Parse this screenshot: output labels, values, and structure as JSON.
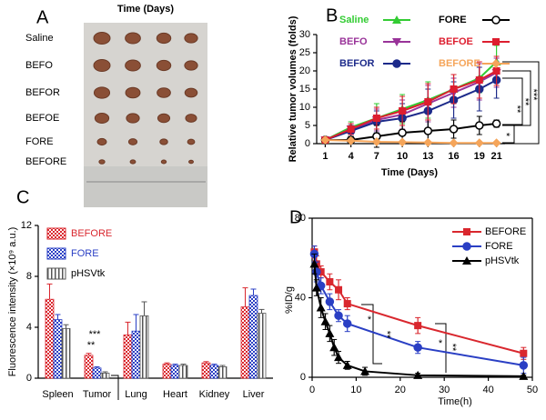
{
  "photo_panel": {
    "label": "A",
    "title": "Time (Days)",
    "rows": [
      "Saline",
      "BEFO",
      "BEFOR",
      "BEFOE",
      "FORE",
      "BEFORE"
    ]
  },
  "chart_data": [
    {
      "type": "line",
      "panel_label": "B",
      "x_label": "Time (Days)",
      "y_label": "Relative tumor volumes (folds)",
      "x": [
        1,
        4,
        7,
        10,
        13,
        16,
        19,
        21
      ],
      "xlim": [
        0,
        22
      ],
      "xticks": [
        1,
        4,
        7,
        10,
        13,
        16,
        19,
        21
      ],
      "ylim": [
        0,
        30
      ],
      "yticks": [
        0,
        5,
        10,
        15,
        20,
        25,
        30
      ],
      "series": [
        {
          "name": "Saline",
          "color": "#33cc33",
          "marker": "triangle-up",
          "values": [
            1,
            4.5,
            7,
            9.5,
            12,
            15,
            18,
            22.5
          ],
          "errors": [
            0.2,
            1.5,
            4,
            4,
            5,
            4,
            4,
            4.5
          ]
        },
        {
          "name": "BEFO",
          "color": "#993399",
          "marker": "triangle-down",
          "values": [
            1,
            4,
            6.5,
            8,
            11,
            14,
            17,
            19.5
          ],
          "errors": [
            0.2,
            1.5,
            3,
            4,
            5,
            4,
            5,
            4
          ]
        },
        {
          "name": "BEFOR",
          "color": "#1c2a8a",
          "marker": "circle",
          "values": [
            1,
            3.5,
            6,
            7,
            9,
            12,
            15,
            17.5
          ],
          "errors": [
            0.2,
            1.5,
            3,
            4,
            6,
            5,
            6,
            5
          ]
        },
        {
          "name": "FORE",
          "color": "#000000",
          "marker": "circle-open",
          "values": [
            1,
            1,
            2,
            3,
            3.5,
            4,
            5,
            5.5
          ],
          "errors": [
            0.2,
            1,
            3,
            3,
            3,
            2.5,
            2.5,
            1
          ]
        },
        {
          "name": "BEFOE",
          "color": "#dd1e2f",
          "marker": "square",
          "values": [
            1,
            4,
            7,
            9,
            11.5,
            15,
            17.5,
            20
          ],
          "errors": [
            0.2,
            1.5,
            3,
            4,
            5,
            4,
            5,
            4
          ]
        },
        {
          "name": "BEFORE",
          "color": "#f5a55a",
          "marker": "diamond",
          "values": [
            1,
            0.8,
            0.5,
            0.4,
            0.3,
            0.2,
            0.2,
            0.2
          ],
          "errors": [
            0.1,
            0.2,
            0.2,
            0.1,
            0.1,
            0.1,
            0.1,
            0.1
          ]
        }
      ],
      "annotations": [
        "*",
        "**",
        "**",
        "***"
      ]
    },
    {
      "type": "bar",
      "panel_label": "C",
      "y_label": "Fluorescence intensity (×10⁹ a.u.)",
      "categories": [
        "Spleen",
        "Tumor",
        "Lung",
        "Heart",
        "Kidney",
        "Liver"
      ],
      "ylim": [
        0,
        12
      ],
      "yticks": [
        0,
        4,
        8,
        12
      ],
      "series": [
        {
          "name": "BEFORE",
          "color": "#d9272e",
          "pattern": "check",
          "values": [
            6.2,
            1.8,
            3.4,
            1.1,
            1.2,
            5.6
          ],
          "errors": [
            1.2,
            0.15,
            1.0,
            0.1,
            0.1,
            1.5
          ]
        },
        {
          "name": "FORE",
          "color": "#2a3fc4",
          "pattern": "check",
          "values": [
            4.6,
            0.8,
            3.7,
            1.0,
            1.0,
            6.5
          ],
          "errors": [
            0.4,
            0.1,
            1.3,
            0.1,
            0.1,
            0.5
          ]
        },
        {
          "name": "pHSVtk",
          "color": "#555555",
          "pattern": "stripes",
          "values": [
            3.9,
            0.4,
            4.9,
            1.0,
            0.9,
            5.1
          ],
          "errors": [
            0.3,
            0.1,
            1.1,
            0.1,
            0.1,
            0.3
          ]
        }
      ],
      "annotations": [
        "***",
        "**"
      ]
    },
    {
      "type": "line",
      "panel_label": "D",
      "x_label": "Time(h)",
      "y_label": "%ID/g",
      "xlim": [
        0,
        50
      ],
      "xticks": [
        0,
        10,
        20,
        30,
        40,
        50
      ],
      "ylim": [
        0,
        80
      ],
      "yticks": [
        0,
        40,
        80
      ],
      "series": [
        {
          "name": "BEFORE",
          "color": "#d9272e",
          "marker": "square",
          "x": [
            0.5,
            1,
            2,
            4,
            6,
            8,
            24,
            48
          ],
          "values": [
            63,
            57,
            53,
            48,
            44,
            37,
            26,
            12
          ],
          "errors": [
            3,
            4,
            3,
            4,
            5,
            3,
            4,
            3
          ]
        },
        {
          "name": "FORE",
          "color": "#2a3fc4",
          "marker": "circle",
          "x": [
            0.5,
            1,
            2,
            4,
            6,
            8,
            24,
            48
          ],
          "values": [
            62,
            53,
            46,
            38,
            31,
            27,
            15,
            6
          ],
          "errors": [
            4,
            5,
            4,
            4,
            3,
            4,
            3,
            4
          ]
        },
        {
          "name": "pHSVtk",
          "color": "#000000",
          "marker": "triangle-up",
          "x": [
            0.5,
            1,
            2,
            3,
            4,
            5,
            6,
            8,
            12,
            24,
            48
          ],
          "values": [
            57,
            45,
            35,
            28,
            22,
            15,
            10,
            6,
            3,
            1,
            0.5
          ],
          "errors": [
            5,
            4,
            5,
            4,
            4,
            4,
            3,
            2,
            2,
            1,
            0.5
          ]
        }
      ],
      "annotations": [
        "*",
        "**",
        "*",
        "**"
      ]
    }
  ]
}
